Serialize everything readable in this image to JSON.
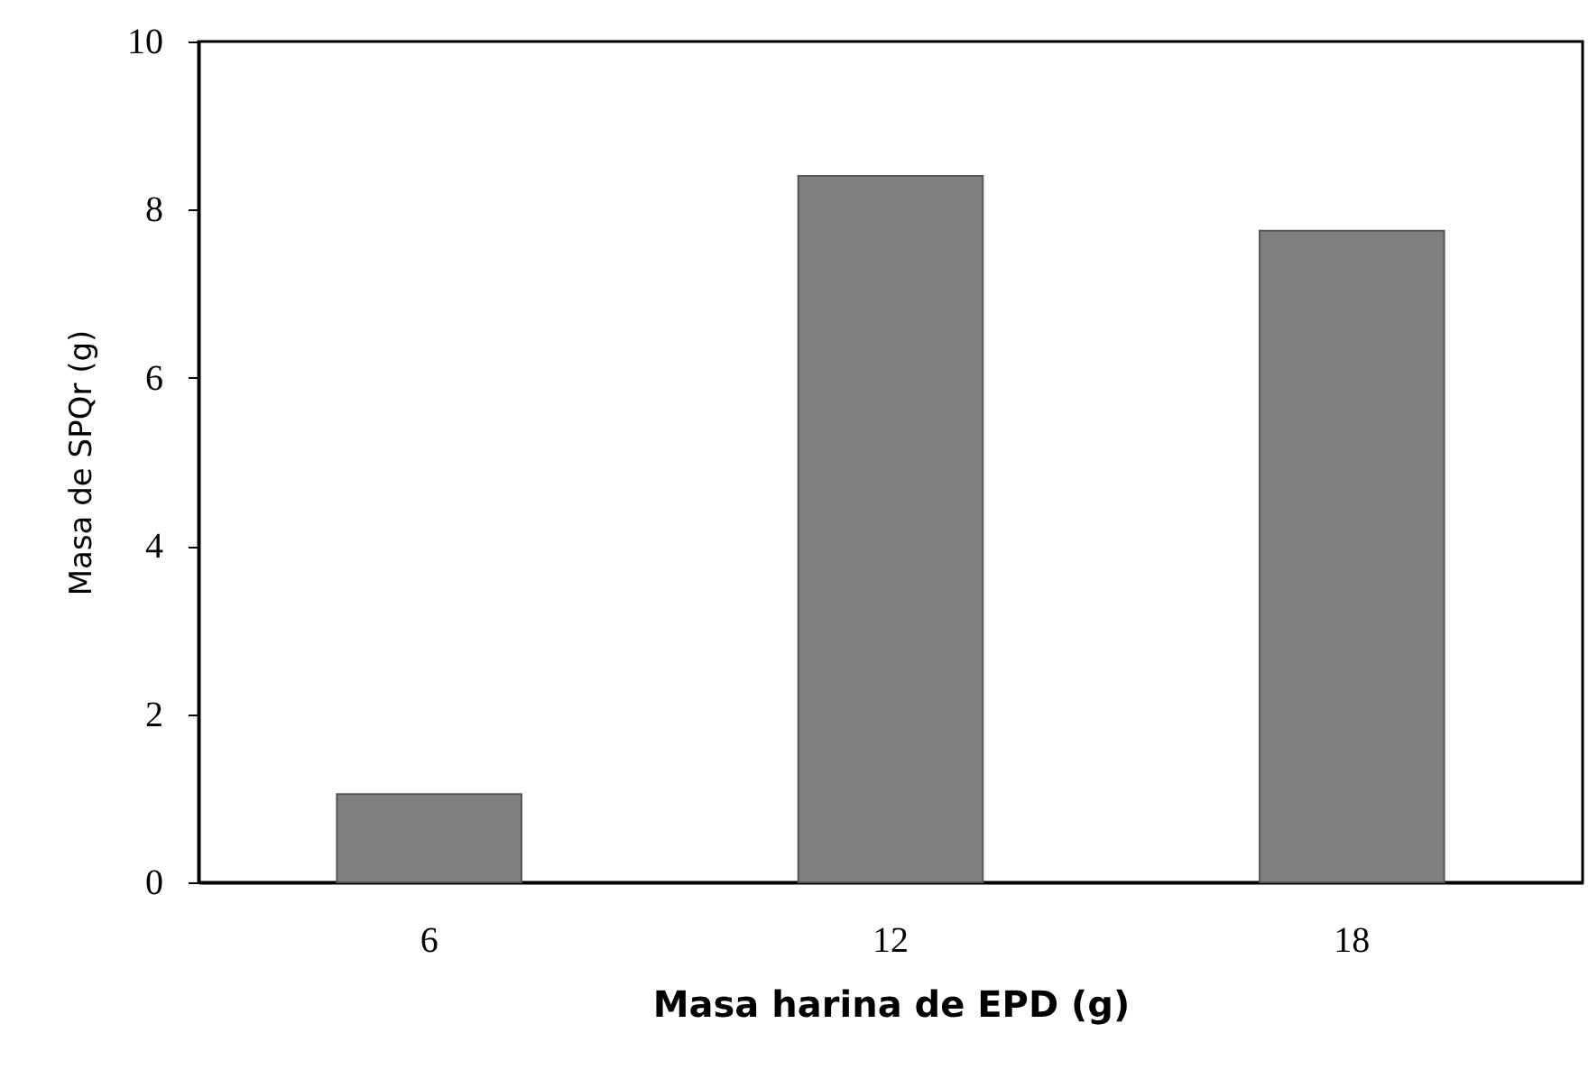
{
  "chart_data": {
    "type": "bar",
    "xlabel": "Masa harina de EPD (g)",
    "ylabel": "Masa de SPQr (g)",
    "categories": [
      "6",
      "12",
      "18"
    ],
    "values": [
      1.05,
      8.4,
      7.75
    ],
    "color": "#808080",
    "ylim": [
      0,
      10
    ],
    "yticks": [
      0,
      2,
      4,
      6,
      8,
      10
    ],
    "grid": false
  }
}
